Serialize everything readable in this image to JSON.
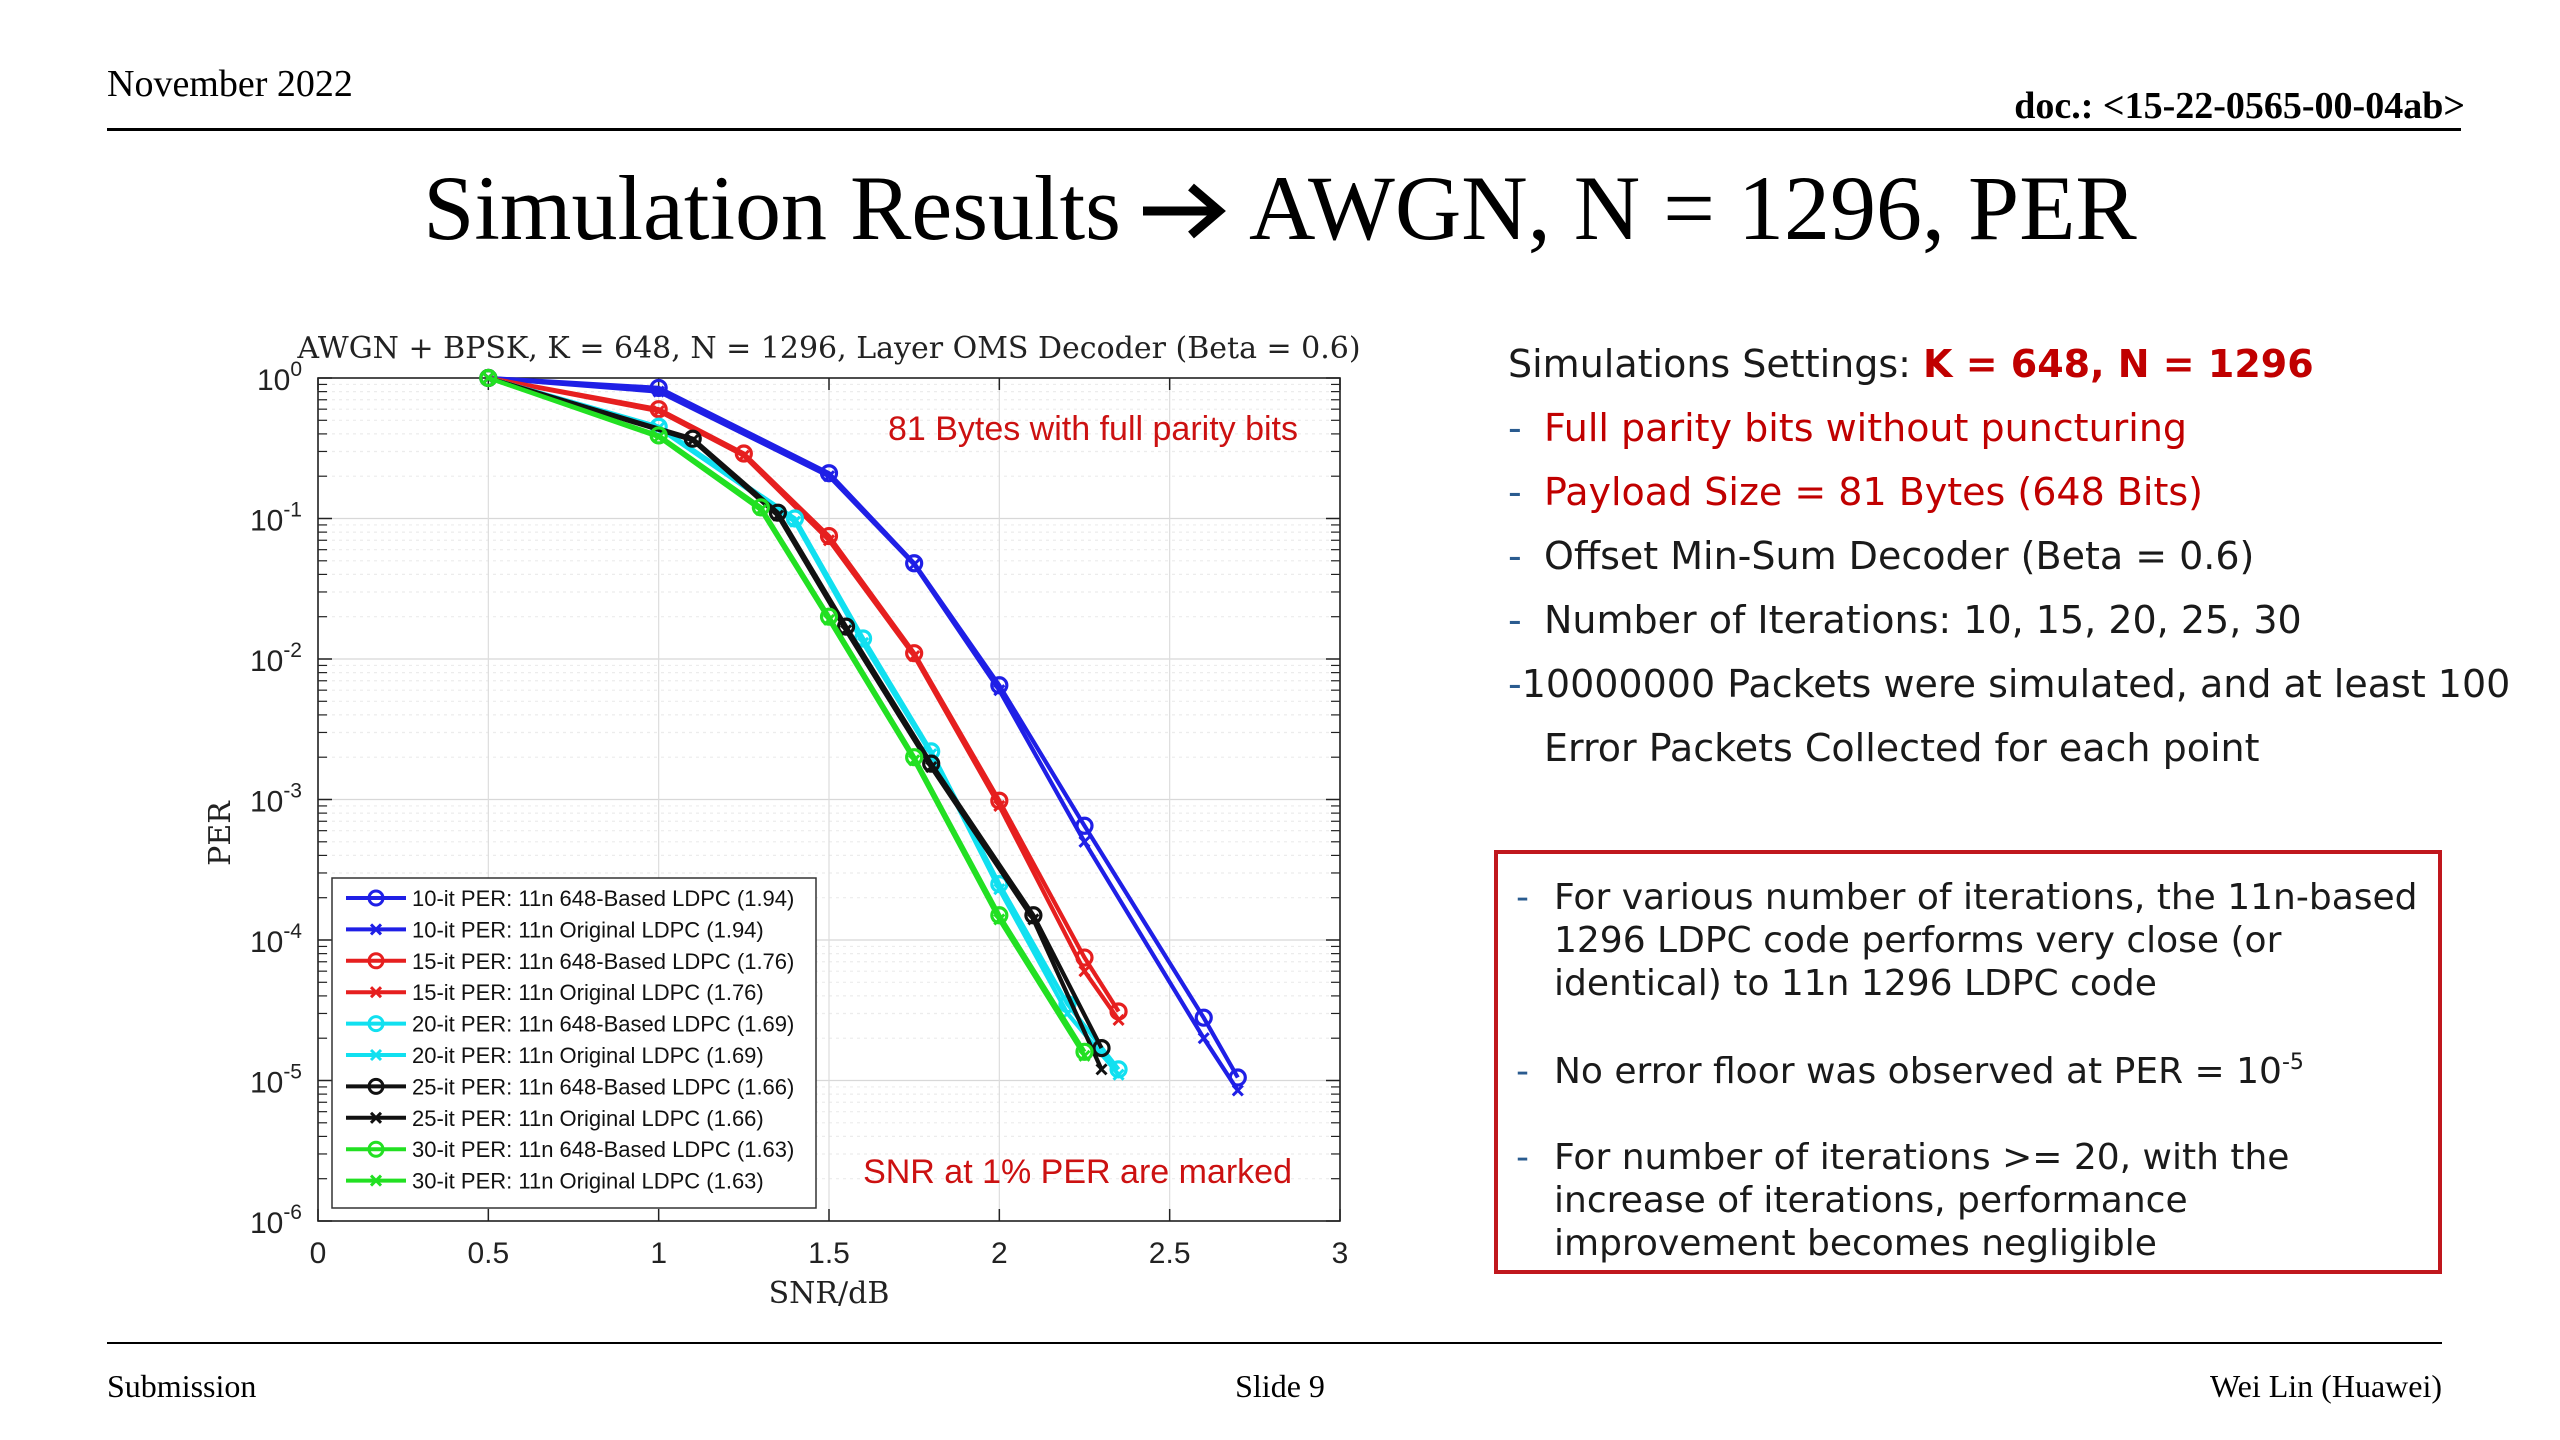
{
  "header": {
    "date": "November 2022",
    "doc": "doc.: <15-22-0565-00-04ab>"
  },
  "title": {
    "left": "Simulation Results",
    "right": "AWGN, N = 1296, PER",
    "arrow_icon": "right-arrow-icon"
  },
  "settings": {
    "heading": "Simulations Settings: ",
    "heading_values": "K = 648, N = 1296",
    "items": [
      "Full parity bits without puncturing",
      "Payload Size = 81 Bytes (648 Bits)",
      "Offset Min-Sum Decoder (Beta = 0.6)",
      "Number of Iterations: 10, 15, 20, 25, 30",
      "10000000 Packets were simulated, and at least 100"
    ],
    "item_continuation": "Error Packets Collected for each point",
    "dash": "-"
  },
  "conclusions": {
    "items": [
      "For various number of iterations, the 11n-based 1296 LDPC code performs very close (or identical) to 11n 1296 LDPC code",
      "No error floor was observed at PER = 10",
      "For number of iterations >= 20, with the increase of iterations, performance improvement becomes negligible"
    ],
    "item2_exponent": "-5",
    "dash": "-"
  },
  "footer": {
    "left": "Submission",
    "center": "Slide 9",
    "right": "Wei Lin (Huawei)"
  },
  "chart_data": {
    "type": "line",
    "title": "AWGN + BPSK, K = 648, N = 1296, Layer OMS Decoder (Beta = 0.6)",
    "xlabel": "SNR/dB",
    "ylabel": "PER",
    "xlim": [
      0,
      3
    ],
    "ylim": [
      1e-06,
      1
    ],
    "y_scale": "log",
    "grid": true,
    "legend_position": "bottom-left",
    "x_ticks": [
      "0",
      "0.5",
      "1",
      "1.5",
      "2",
      "2.5",
      "3"
    ],
    "y_tick_base": "10",
    "y_tick_exponents": [
      "0",
      "-1",
      "-2",
      "-3",
      "-4",
      "-5",
      "-6"
    ],
    "annotations": [
      "81 Bytes with full parity bits",
      "SNR at 1% PER are marked"
    ],
    "annotation_color": "#cc1111",
    "series": [
      {
        "name": "10-it PER: 11n 648-Based LDPC (1.94)",
        "color": "#1f1fe6",
        "marker": "circle",
        "x": [
          0.5,
          1.0,
          1.5,
          1.75,
          2.0,
          2.25,
          2.6,
          2.7
        ],
        "y": [
          1.0,
          0.85,
          0.21,
          0.048,
          0.0065,
          0.00065,
          2.8e-05,
          1.05e-05
        ]
      },
      {
        "name": "10-it PER: 11n Original LDPC (1.94)",
        "color": "#1f1fe6",
        "marker": "x",
        "x": [
          0.5,
          1.0,
          1.5,
          1.75,
          2.0,
          2.25,
          2.6,
          2.7
        ],
        "y": [
          1.0,
          0.8,
          0.2,
          0.047,
          0.006,
          0.0005,
          2e-05,
          8.5e-06
        ]
      },
      {
        "name": "15-it PER: 11n 648-Based LDPC (1.76)",
        "color": "#e61f1f",
        "marker": "circle",
        "x": [
          0.5,
          1.0,
          1.25,
          1.5,
          1.75,
          2.0,
          2.25,
          2.35
        ],
        "y": [
          1.0,
          0.6,
          0.29,
          0.075,
          0.011,
          0.00098,
          7.5e-05,
          3.1e-05
        ]
      },
      {
        "name": "15-it PER: 11n Original LDPC (1.76)",
        "color": "#e61f1f",
        "marker": "x",
        "x": [
          0.5,
          1.0,
          1.25,
          1.5,
          1.75,
          2.0,
          2.25,
          2.35
        ],
        "y": [
          1.0,
          0.58,
          0.28,
          0.07,
          0.0105,
          0.0009,
          6e-05,
          2.7e-05
        ]
      },
      {
        "name": "20-it PER: 11n 648-Based LDPC (1.69)",
        "color": "#11e0f0",
        "marker": "circle",
        "x": [
          0.5,
          1.0,
          1.4,
          1.6,
          1.8,
          2.0,
          2.2,
          2.35
        ],
        "y": [
          1.0,
          0.45,
          0.1,
          0.014,
          0.0022,
          0.00025,
          3.5e-05,
          1.2e-05
        ]
      },
      {
        "name": "20-it PER: 11n Original LDPC (1.69)",
        "color": "#11e0f0",
        "marker": "x",
        "x": [
          0.5,
          1.0,
          1.4,
          1.6,
          1.8,
          2.0,
          2.2,
          2.35
        ],
        "y": [
          1.0,
          0.44,
          0.095,
          0.013,
          0.0021,
          0.00023,
          3e-05,
          1.1e-05
        ]
      },
      {
        "name": "25-it PER: 11n 648-Based LDPC (1.66)",
        "color": "#111111",
        "marker": "circle",
        "x": [
          0.5,
          1.1,
          1.35,
          1.55,
          1.8,
          2.1,
          2.3
        ],
        "y": [
          1.0,
          0.37,
          0.11,
          0.017,
          0.0018,
          0.00015,
          1.7e-05
        ]
      },
      {
        "name": "25-it PER: 11n Original LDPC (1.66)",
        "color": "#111111",
        "marker": "x",
        "x": [
          0.5,
          1.1,
          1.35,
          1.55,
          1.8,
          2.1,
          2.3
        ],
        "y": [
          1.0,
          0.36,
          0.105,
          0.016,
          0.0017,
          0.00014,
          1.2e-05
        ]
      },
      {
        "name": "30-it PER: 11n 648-Based LDPC (1.63)",
        "color": "#22e022",
        "marker": "circle",
        "x": [
          0.5,
          1.0,
          1.3,
          1.5,
          1.75,
          2.0,
          2.25
        ],
        "y": [
          1.0,
          0.39,
          0.12,
          0.02,
          0.002,
          0.00015,
          1.6e-05
        ]
      },
      {
        "name": "30-it PER: 11n Original LDPC (1.63)",
        "color": "#22e022",
        "marker": "x",
        "x": [
          0.5,
          1.0,
          1.3,
          1.5,
          1.75,
          2.0,
          2.25
        ],
        "y": [
          1.0,
          0.38,
          0.115,
          0.019,
          0.0019,
          0.00014,
          1.5e-05
        ]
      }
    ]
  }
}
